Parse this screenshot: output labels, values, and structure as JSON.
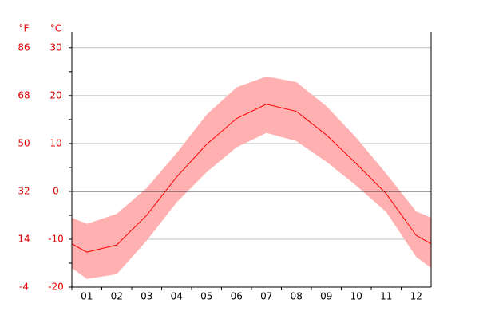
{
  "chart_data": {
    "type": "line",
    "y_label": "°C",
    "y2_label": "°F",
    "categories": [
      "01",
      "02",
      "03",
      "04",
      "05",
      "06",
      "07",
      "08",
      "09",
      "10",
      "11",
      "12"
    ],
    "series": [
      {
        "color": "#ff0000",
        "values": [
          -12.7,
          -11.2,
          -5,
          3,
          9.8,
          15.2,
          18.2,
          16.7,
          11.8,
          5.8,
          -0.5,
          -9.2
        ]
      }
    ],
    "band": {
      "color": "#ffb0b0",
      "upper": [
        -6.8,
        -4.7,
        0.7,
        8,
        16,
        21.7,
        24,
        22.8,
        17.8,
        11.2,
        3.7,
        -4.2
      ],
      "lower": [
        -18.3,
        -17.3,
        -10.3,
        -2.3,
        4,
        9.2,
        12.2,
        10.5,
        6.2,
        1.2,
        -4.3,
        -13.7
      ]
    },
    "ylim": [
      -20,
      33.3
    ],
    "yticks": [
      -20,
      -10,
      0,
      10,
      20,
      30
    ],
    "y2lim": [
      -4,
      92
    ],
    "y2ticks": [
      -4,
      14,
      32,
      50,
      68,
      86
    ],
    "grid": true
  }
}
